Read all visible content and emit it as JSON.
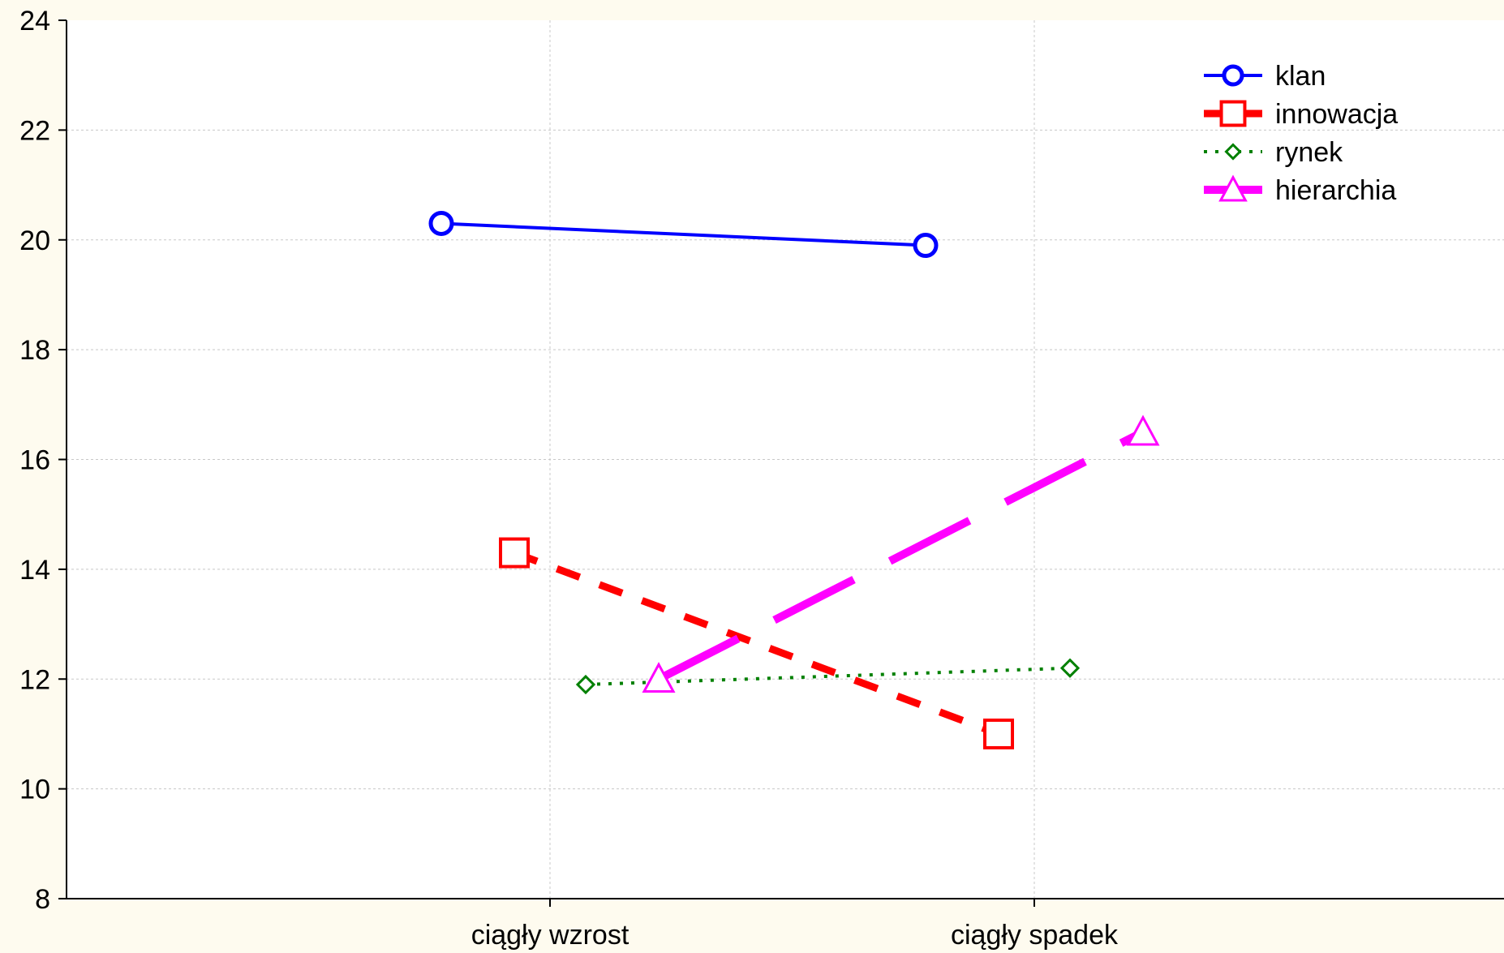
{
  "chart_data": {
    "type": "line",
    "title": "",
    "xlabel": "",
    "ylabel": "",
    "categories": [
      "ciągły wzrost",
      "ciągły spadek"
    ],
    "ylim": [
      8,
      24
    ],
    "yticks": [
      8,
      10,
      12,
      14,
      16,
      18,
      20,
      22,
      24
    ],
    "grid": true,
    "legend_position": "top-right",
    "series": [
      {
        "name": "klan",
        "values": [
          20.3,
          19.9
        ],
        "color": "#0000ff",
        "marker": "circle",
        "line_style": "solid"
      },
      {
        "name": "innowacja",
        "values": [
          14.3,
          11.0
        ],
        "color": "#ff0000",
        "marker": "square",
        "line_style": "dashed"
      },
      {
        "name": "rynek",
        "values": [
          11.9,
          12.2
        ],
        "color": "#008000",
        "marker": "diamond",
        "line_style": "dotted"
      },
      {
        "name": "hierarchia",
        "values": [
          12.0,
          16.5
        ],
        "color": "#ff00ff",
        "marker": "triangle",
        "line_style": "long-dashed"
      }
    ]
  }
}
